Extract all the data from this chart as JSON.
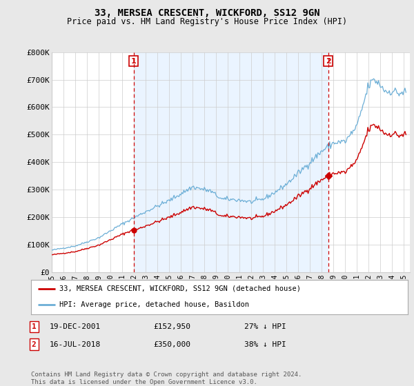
{
  "title": "33, MERSEA CRESCENT, WICKFORD, SS12 9GN",
  "subtitle": "Price paid vs. HM Land Registry's House Price Index (HPI)",
  "ylim": [
    0,
    800000
  ],
  "yticks": [
    0,
    100000,
    200000,
    300000,
    400000,
    500000,
    600000,
    700000,
    800000
  ],
  "ytick_labels": [
    "£0",
    "£100K",
    "£200K",
    "£300K",
    "£400K",
    "£500K",
    "£600K",
    "£700K",
    "£800K"
  ],
  "hpi_color": "#6baed6",
  "hpi_fill_color": "#ddeeff",
  "price_color": "#cc0000",
  "vline_color": "#cc0000",
  "background_color": "#e8e8e8",
  "plot_bg_color": "#ffffff",
  "grid_color": "#cccccc",
  "sale1_x": 2001.97,
  "sale1_y": 152950,
  "sale1_label": "1",
  "sale1_date": "19-DEC-2001",
  "sale1_price": "£152,950",
  "sale1_note": "27% ↓ HPI",
  "sale2_x": 2018.54,
  "sale2_y": 350000,
  "sale2_label": "2",
  "sale2_date": "16-JUL-2018",
  "sale2_price": "£350,000",
  "sale2_note": "38% ↓ HPI",
  "legend_line1": "33, MERSEA CRESCENT, WICKFORD, SS12 9GN (detached house)",
  "legend_line2": "HPI: Average price, detached house, Basildon",
  "footer": "Contains HM Land Registry data © Crown copyright and database right 2024.\nThis data is licensed under the Open Government Licence v3.0.",
  "x_start": 1995.0,
  "x_end": 2025.5,
  "xtick_years": [
    1995,
    1996,
    1997,
    1998,
    1999,
    2000,
    2001,
    2002,
    2003,
    2004,
    2005,
    2006,
    2007,
    2008,
    2009,
    2010,
    2011,
    2012,
    2013,
    2014,
    2015,
    2016,
    2017,
    2018,
    2019,
    2020,
    2021,
    2022,
    2023,
    2024,
    2025
  ]
}
